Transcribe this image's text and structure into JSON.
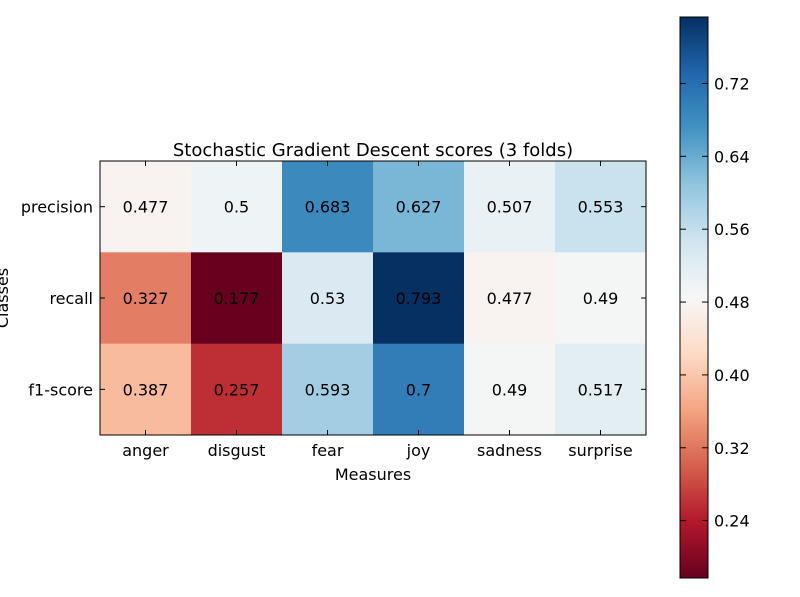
{
  "chart_data": {
    "type": "heatmap",
    "title": "Stochastic Gradient Descent scores (3 folds)",
    "xlabel": "Measures",
    "ylabel": "Classes",
    "x_categories": [
      "anger",
      "disgust",
      "fear",
      "joy",
      "sadness",
      "surprise"
    ],
    "y_categories": [
      "precision",
      "recall",
      "f1-score"
    ],
    "values": [
      [
        0.477,
        0.5,
        0.683,
        0.627,
        0.507,
        0.553
      ],
      [
        0.327,
        0.177,
        0.53,
        0.793,
        0.477,
        0.49
      ],
      [
        0.387,
        0.257,
        0.593,
        0.7,
        0.49,
        0.517
      ]
    ],
    "value_labels": [
      [
        "0.477",
        "0.5",
        "0.683",
        "0.627",
        "0.507",
        "0.553"
      ],
      [
        "0.327",
        "0.177",
        "0.53",
        "0.793",
        "0.477",
        "0.49"
      ],
      [
        "0.387",
        "0.257",
        "0.593",
        "0.7",
        "0.49",
        "0.517"
      ]
    ],
    "colormap": "RdBu",
    "colorbar": {
      "range": [
        0.177,
        0.793
      ],
      "ticks": [
        0.24,
        0.32,
        0.4,
        0.48,
        0.56,
        0.64,
        0.72
      ],
      "tick_labels": [
        "0.24",
        "0.32",
        "0.40",
        "0.48",
        "0.56",
        "0.64",
        "0.72"
      ],
      "position": "right"
    },
    "grid": false
  }
}
